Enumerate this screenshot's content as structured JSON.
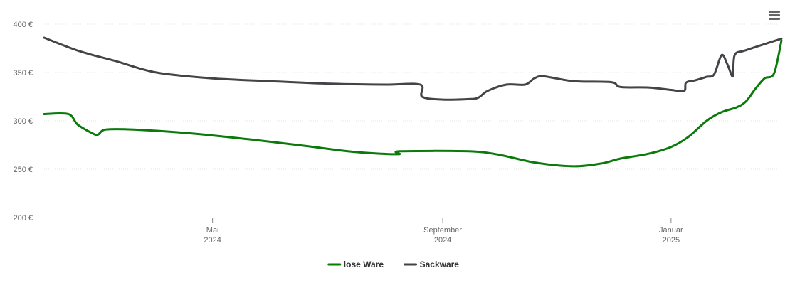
{
  "chart_data": {
    "type": "line",
    "y_ticks": [
      {
        "value": 200,
        "label": "200 €"
      },
      {
        "value": 250,
        "label": "250 €"
      },
      {
        "value": 300,
        "label": "300 €"
      },
      {
        "value": 350,
        "label": "350 €"
      },
      {
        "value": 400,
        "label": "400 €"
      }
    ],
    "ylim": [
      200,
      400
    ],
    "xlim": [
      "2024-02-01",
      "2025-03-01"
    ],
    "x_ticks": [
      {
        "date": "2024-05-01",
        "line1": "Mai",
        "line2": "2024"
      },
      {
        "date": "2024-09-01",
        "line1": "September",
        "line2": "2024"
      },
      {
        "date": "2025-01-01",
        "line1": "Januar",
        "line2": "2025"
      }
    ],
    "grid": true,
    "legend_position": "bottom-center",
    "series": [
      {
        "name": "lose Ware",
        "color": "#0a7a0a",
        "points": [
          [
            "2024-02-01",
            307
          ],
          [
            "2024-02-14",
            307
          ],
          [
            "2024-02-19",
            296
          ],
          [
            "2024-02-28",
            286
          ],
          [
            "2024-03-01",
            286
          ],
          [
            "2024-03-05",
            291
          ],
          [
            "2024-03-20",
            291
          ],
          [
            "2024-04-20",
            287
          ],
          [
            "2024-05-20",
            281
          ],
          [
            "2024-06-20",
            274
          ],
          [
            "2024-07-15",
            268
          ],
          [
            "2024-08-08",
            265.5
          ],
          [
            "2024-08-09",
            268.5
          ],
          [
            "2024-09-15",
            268.5
          ],
          [
            "2024-10-01",
            265
          ],
          [
            "2024-10-20",
            257
          ],
          [
            "2024-11-10",
            253
          ],
          [
            "2024-11-25",
            256
          ],
          [
            "2024-12-05",
            261
          ],
          [
            "2024-12-20",
            266
          ],
          [
            "2025-01-01",
            273
          ],
          [
            "2025-01-10",
            283
          ],
          [
            "2025-01-20",
            300
          ],
          [
            "2025-01-28",
            309
          ],
          [
            "2025-02-05",
            314
          ],
          [
            "2025-02-10",
            320
          ],
          [
            "2025-02-15",
            333
          ],
          [
            "2025-02-20",
            344
          ],
          [
            "2025-02-25",
            349
          ],
          [
            "2025-03-01",
            383
          ]
        ]
      },
      {
        "name": "Sackware",
        "color": "#444448",
        "points": [
          [
            "2024-02-01",
            386
          ],
          [
            "2024-02-20",
            372
          ],
          [
            "2024-03-10",
            362
          ],
          [
            "2024-04-01",
            350
          ],
          [
            "2024-05-01",
            344
          ],
          [
            "2024-06-01",
            341
          ],
          [
            "2024-07-01",
            338.5
          ],
          [
            "2024-08-01",
            337.5
          ],
          [
            "2024-08-20",
            337.5
          ],
          [
            "2024-08-21",
            325
          ],
          [
            "2024-09-01",
            322
          ],
          [
            "2024-09-15",
            322.5
          ],
          [
            "2024-09-20",
            324
          ],
          [
            "2024-09-25",
            331
          ],
          [
            "2024-10-05",
            337.5
          ],
          [
            "2024-10-15",
            337.5
          ],
          [
            "2024-10-20",
            344
          ],
          [
            "2024-10-25",
            346
          ],
          [
            "2024-11-10",
            341
          ],
          [
            "2024-11-30",
            340
          ],
          [
            "2024-12-05",
            335
          ],
          [
            "2024-12-20",
            334.5
          ],
          [
            "2025-01-01",
            332
          ],
          [
            "2025-01-08",
            331
          ],
          [
            "2025-01-09",
            339.5
          ],
          [
            "2025-01-14",
            342
          ],
          [
            "2025-01-20",
            345.5
          ],
          [
            "2025-01-24",
            348
          ],
          [
            "2025-01-28",
            368
          ],
          [
            "2025-01-31",
            359
          ],
          [
            "2025-02-03",
            346
          ],
          [
            "2025-02-04",
            368
          ],
          [
            "2025-02-10",
            373
          ],
          [
            "2025-03-01",
            385
          ]
        ]
      }
    ]
  },
  "toolbar": {
    "menu_icon": "hamburger-menu-icon"
  }
}
